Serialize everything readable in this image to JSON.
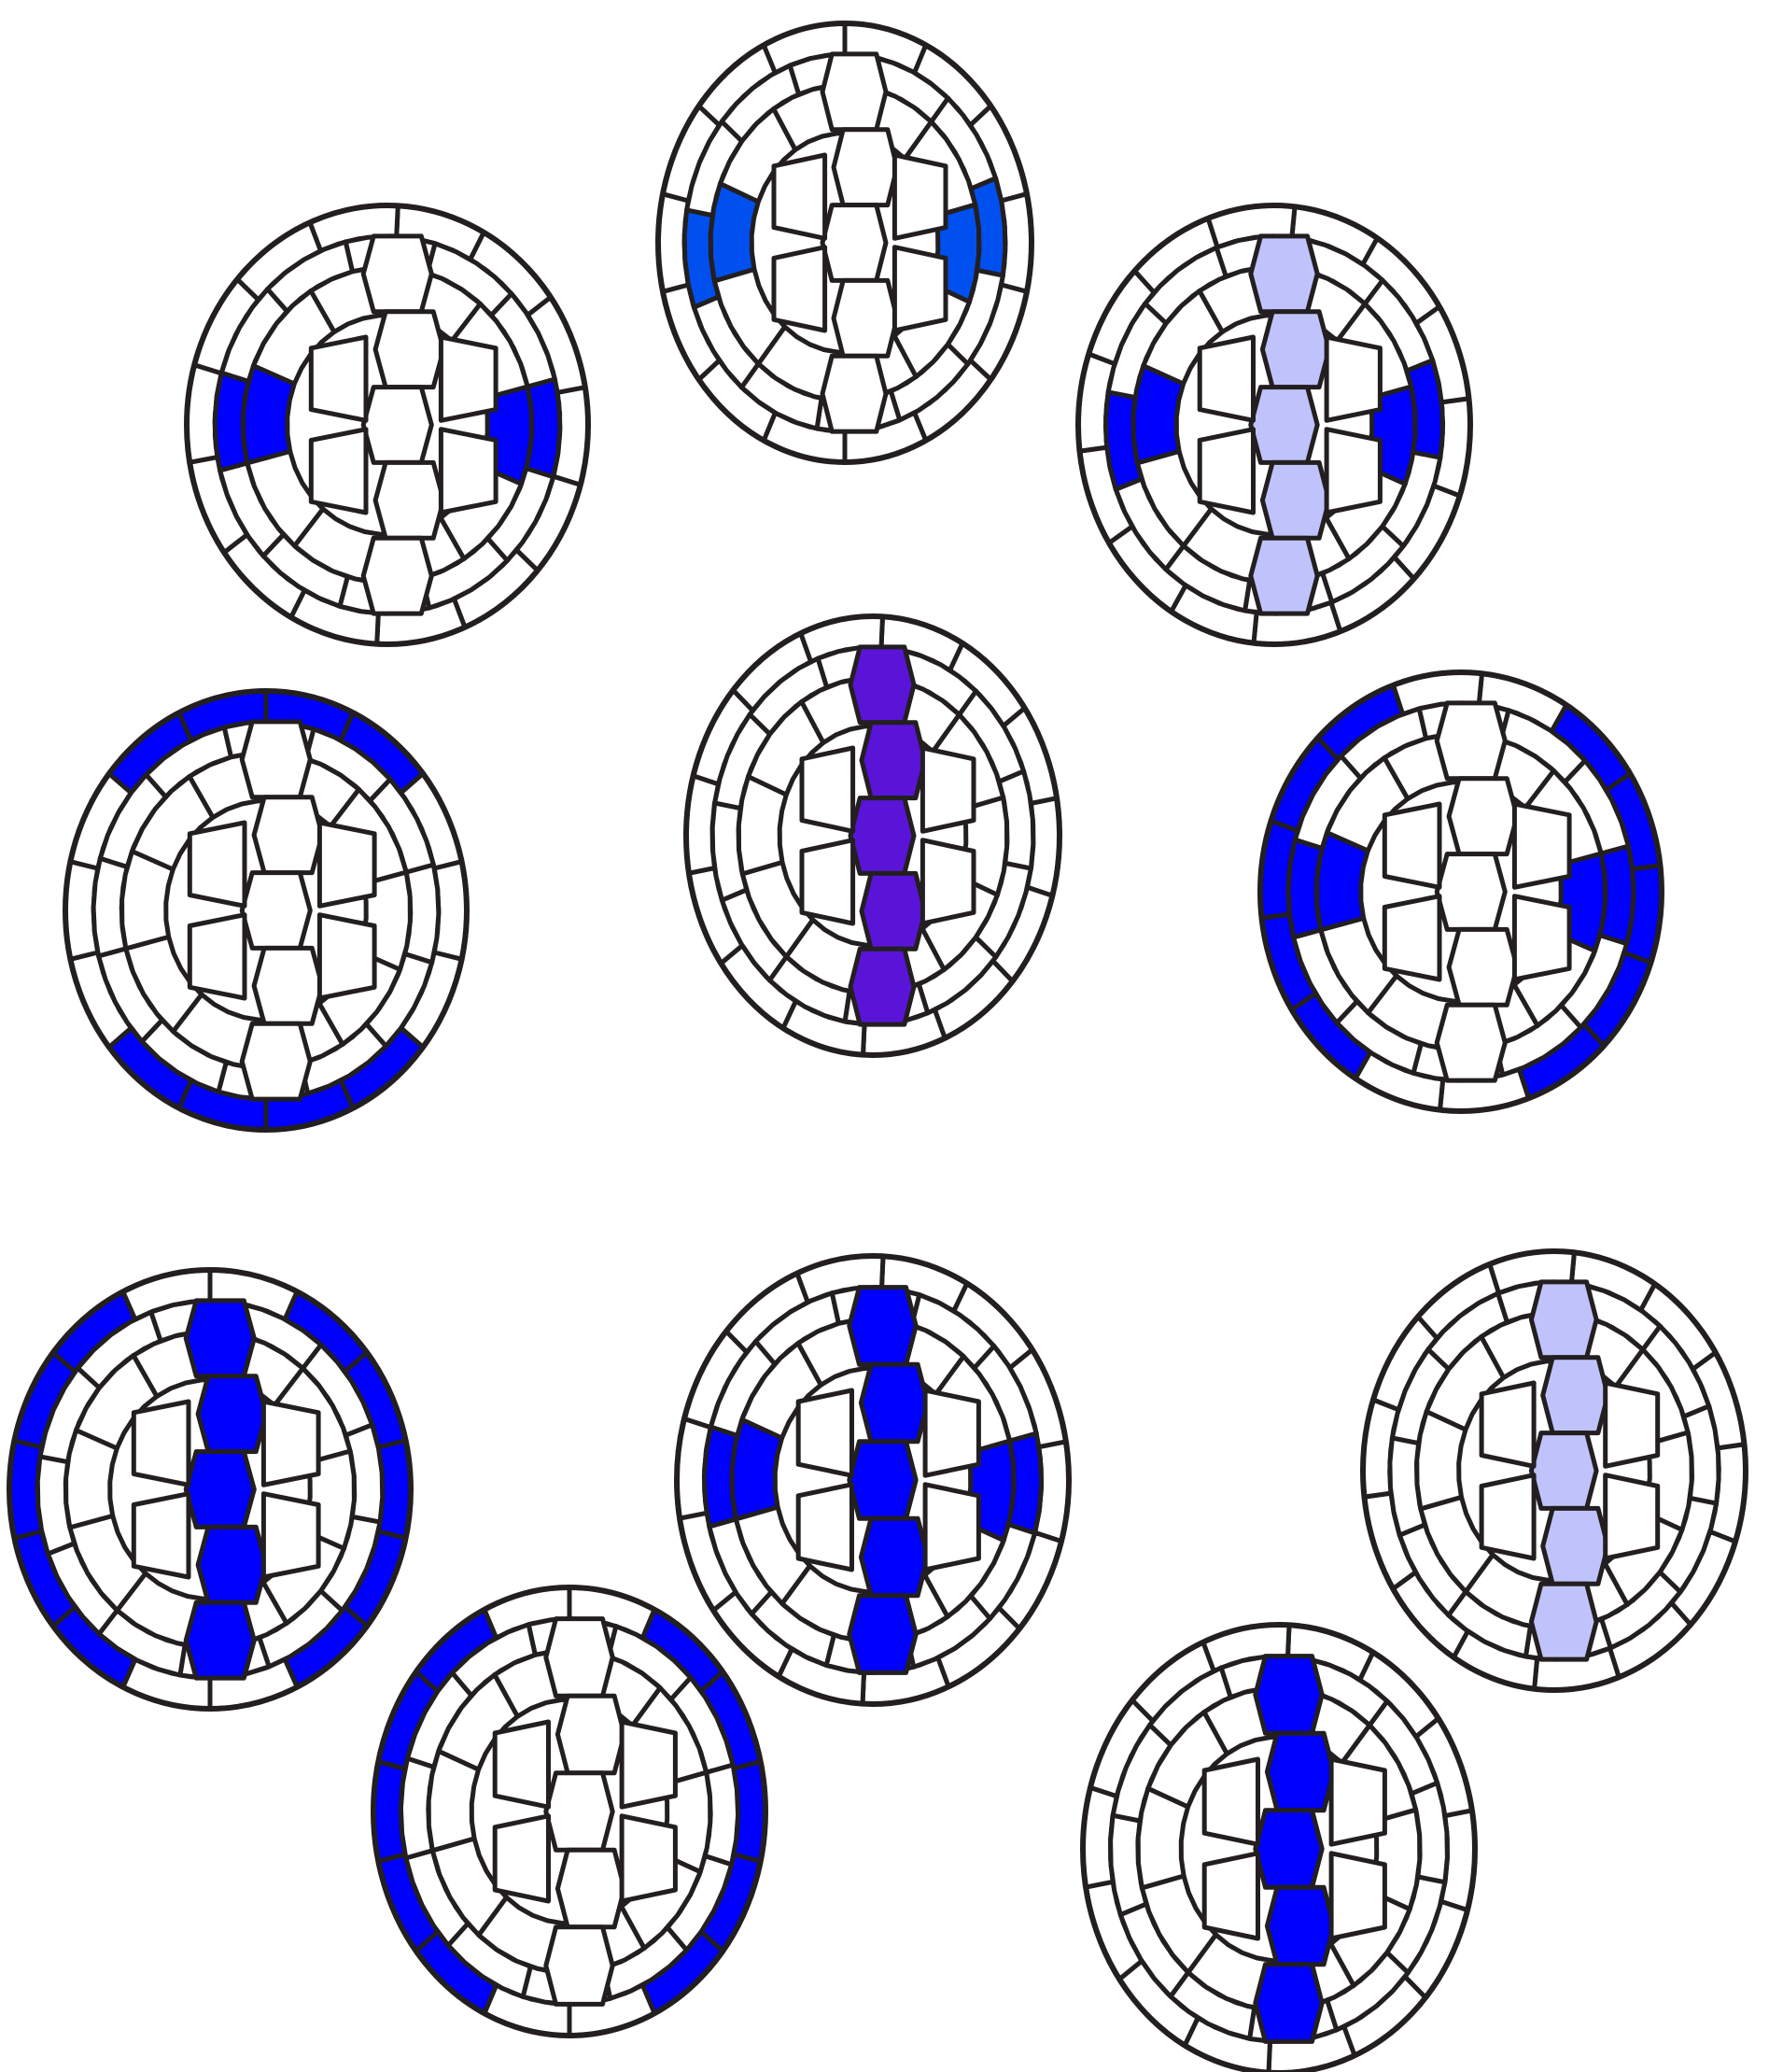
{
  "colors": {
    "outline": "#231f20",
    "unlabeled": "#ffffff",
    "blue": "#0000ff",
    "bright_blue": "#0050f0",
    "light_blue": "#c0c3fb",
    "purple": "#5a14d8"
  },
  "sections": [
    {
      "name": "section-top-center",
      "highlight": [
        "lateral"
      ],
      "lateral_color": "bright_blue"
    },
    {
      "name": "section-upper-left",
      "highlight": [
        "lateral"
      ],
      "lateral_color": "blue"
    },
    {
      "name": "section-upper-right",
      "highlight": [
        "lateral",
        "central"
      ],
      "lateral_color": "blue",
      "central_color": "light_blue"
    },
    {
      "name": "section-middle-left",
      "highlight": [
        "rim-top",
        "rim-bottom"
      ],
      "rim_color": "blue"
    },
    {
      "name": "section-middle-center",
      "highlight": [
        "central"
      ],
      "central_color": "purple"
    },
    {
      "name": "section-middle-right",
      "highlight": [
        "rim-sides",
        "lateral"
      ],
      "rim_color": "blue",
      "lateral_color": "blue"
    },
    {
      "name": "section-lower-left",
      "highlight": [
        "rim-sides",
        "central"
      ],
      "rim_color": "blue",
      "central_color": "blue"
    },
    {
      "name": "section-lower-center",
      "highlight": [
        "lateral",
        "central"
      ],
      "lateral_color": "blue",
      "central_color": "blue"
    },
    {
      "name": "section-lower-right",
      "highlight": [
        "central"
      ],
      "central_color": "light_blue"
    },
    {
      "name": "section-bottom-left",
      "highlight": [
        "rim-sides"
      ],
      "rim_color": "blue"
    },
    {
      "name": "section-bottom-right",
      "highlight": [
        "central"
      ],
      "central_color": "blue"
    }
  ]
}
